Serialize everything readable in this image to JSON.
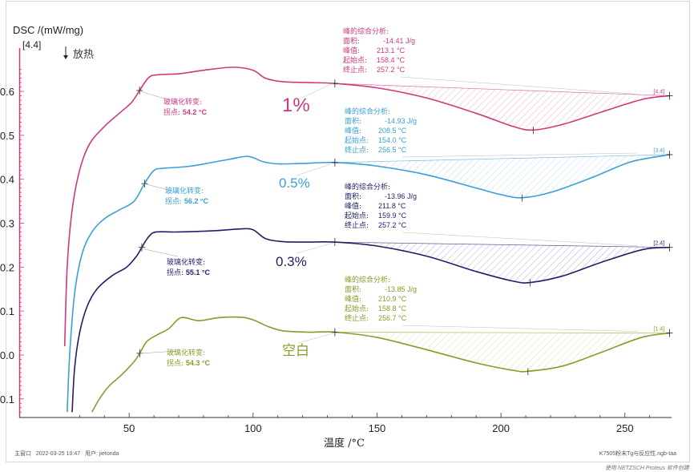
{
  "chart_data": {
    "type": "line",
    "title": "",
    "ylabel": "DSC /(mW/mg)",
    "ylabel_marker": "[4.4]",
    "exo_label": "放热",
    "xlabel": "温度 /°C",
    "xlim": [
      23,
      268
    ],
    "ylim": [
      -0.135,
      0.65
    ],
    "xticks": [
      50,
      100,
      150,
      200,
      250
    ],
    "xtick_labels": [
      "50",
      "100",
      "150",
      "200",
      "250"
    ],
    "yticks": [
      -0.1,
      0.0,
      0.1,
      0.2,
      0.3,
      0.4,
      0.5,
      0.6
    ],
    "ytick_labels": [
      "-0.1",
      "0.0",
      "0.1",
      "0.2",
      "0.3",
      "0.4",
      "0.5",
      "0.6"
    ],
    "grid": false,
    "series": [
      {
        "name": "1%",
        "file_tag": "[4.4]",
        "color": "#d0387e",
        "points": [
          [
            24,
            0.02
          ],
          [
            25,
            0.2
          ],
          [
            27,
            0.33
          ],
          [
            30,
            0.42
          ],
          [
            34,
            0.48
          ],
          [
            40,
            0.52
          ],
          [
            46,
            0.55
          ],
          [
            51,
            0.575
          ],
          [
            54.2,
            0.602
          ],
          [
            58,
            0.632
          ],
          [
            62,
            0.638
          ],
          [
            70,
            0.64
          ],
          [
            80,
            0.648
          ],
          [
            92,
            0.655
          ],
          [
            100,
            0.648
          ],
          [
            105,
            0.63
          ],
          [
            112,
            0.622
          ],
          [
            122,
            0.62
          ],
          [
            133,
            0.618
          ],
          [
            150,
            0.608
          ],
          [
            170,
            0.585
          ],
          [
            190,
            0.55
          ],
          [
            205,
            0.52
          ],
          [
            213.1,
            0.512
          ],
          [
            225,
            0.525
          ],
          [
            240,
            0.552
          ],
          [
            257.2,
            0.582
          ],
          [
            268,
            0.59
          ]
        ],
        "baseline": [
          [
            133,
            0.618
          ],
          [
            268,
            0.59
          ]
        ],
        "tg_label": "玻璃化转变:",
        "tg_inflection_label": "拐点:",
        "tg_inflection": "54.2 °C",
        "peak_title": "峰的综合分析:",
        "area_label": "面积:",
        "area": "-14.41 J/g",
        "peak_label": "峰值:",
        "peak": "213.1 °C",
        "onset_label": "起始点:",
        "onset": "158.4 °C",
        "end_label": "终止点:",
        "end": "257.2 °C"
      },
      {
        "name": "0.5%",
        "file_tag": "[3.4]",
        "color": "#3a9fd6",
        "points": [
          [
            25,
            -0.13
          ],
          [
            26,
            0.0
          ],
          [
            28,
            0.14
          ],
          [
            31,
            0.23
          ],
          [
            35,
            0.28
          ],
          [
            40,
            0.31
          ],
          [
            46,
            0.33
          ],
          [
            52,
            0.35
          ],
          [
            56.2,
            0.39
          ],
          [
            60,
            0.42
          ],
          [
            64,
            0.425
          ],
          [
            75,
            0.43
          ],
          [
            90,
            0.445
          ],
          [
            98,
            0.452
          ],
          [
            104,
            0.44
          ],
          [
            110,
            0.435
          ],
          [
            120,
            0.436
          ],
          [
            133,
            0.438
          ],
          [
            150,
            0.43
          ],
          [
            170,
            0.41
          ],
          [
            190,
            0.38
          ],
          [
            200,
            0.365
          ],
          [
            208.5,
            0.358
          ],
          [
            220,
            0.37
          ],
          [
            235,
            0.4
          ],
          [
            250,
            0.435
          ],
          [
            256.5,
            0.445
          ],
          [
            268,
            0.456
          ]
        ],
        "baseline": [
          [
            133,
            0.438
          ],
          [
            268,
            0.456
          ]
        ],
        "tg_label": "玻璃化转变:",
        "tg_inflection_label": "拐点:",
        "tg_inflection": "56.2 °C",
        "peak_title": "峰的综合分析:",
        "area_label": "面积:",
        "area": "-14.93 J/g",
        "peak_label": "峰值:",
        "peak": "208.5 °C",
        "onset_label": "起始点:",
        "onset": "154.0 °C",
        "end_label": "终止点:",
        "end": "256.5 °C"
      },
      {
        "name": "0.3%",
        "file_tag": "[2.4]",
        "color": "#1f1f66",
        "points": [
          [
            27,
            -0.13
          ],
          [
            28,
            -0.03
          ],
          [
            30,
            0.05
          ],
          [
            33,
            0.11
          ],
          [
            37,
            0.15
          ],
          [
            43,
            0.18
          ],
          [
            49,
            0.2
          ],
          [
            53,
            0.225
          ],
          [
            55.1,
            0.245
          ],
          [
            58,
            0.27
          ],
          [
            61,
            0.28
          ],
          [
            70,
            0.28
          ],
          [
            85,
            0.283
          ],
          [
            95,
            0.287
          ],
          [
            100,
            0.285
          ],
          [
            105,
            0.265
          ],
          [
            112,
            0.258
          ],
          [
            122,
            0.257
          ],
          [
            133,
            0.257
          ],
          [
            150,
            0.248
          ],
          [
            170,
            0.225
          ],
          [
            190,
            0.19
          ],
          [
            205,
            0.168
          ],
          [
            211.8,
            0.165
          ],
          [
            225,
            0.18
          ],
          [
            240,
            0.21
          ],
          [
            257.2,
            0.24
          ],
          [
            268,
            0.245
          ]
        ],
        "baseline": [
          [
            133,
            0.257
          ],
          [
            268,
            0.245
          ]
        ],
        "tg_label": "玻璃化转变:",
        "tg_inflection_label": "拐点:",
        "tg_inflection": "55.1 °C",
        "peak_title": "峰的综合分析:",
        "area_label": "面积:",
        "area": "-13.96 J/g",
        "peak_label": "峰值:",
        "peak": "211.8 °C",
        "onset_label": "起始点:",
        "onset": "159.9 °C",
        "end_label": "终止点:",
        "end": "257.2 °C"
      },
      {
        "name": "空白",
        "file_tag": "[1.4]",
        "color": "#8a9a2a",
        "points": [
          [
            35,
            -0.13
          ],
          [
            38,
            -0.1
          ],
          [
            42,
            -0.07
          ],
          [
            47,
            -0.045
          ],
          [
            52,
            -0.015
          ],
          [
            54.3,
            0.004
          ],
          [
            57,
            0.03
          ],
          [
            61,
            0.045
          ],
          [
            66,
            0.06
          ],
          [
            71,
            0.085
          ],
          [
            78,
            0.078
          ],
          [
            86,
            0.085
          ],
          [
            95,
            0.086
          ],
          [
            100,
            0.08
          ],
          [
            106,
            0.065
          ],
          [
            112,
            0.055
          ],
          [
            122,
            0.052
          ],
          [
            133,
            0.052
          ],
          [
            150,
            0.04
          ],
          [
            170,
            0.012
          ],
          [
            190,
            -0.018
          ],
          [
            205,
            -0.035
          ],
          [
            210.9,
            -0.037
          ],
          [
            225,
            -0.025
          ],
          [
            240,
            0.005
          ],
          [
            256.7,
            0.04
          ],
          [
            268,
            0.05
          ]
        ],
        "baseline": [
          [
            133,
            0.052
          ],
          [
            268,
            0.05
          ]
        ],
        "tg_label": "玻璃化转变:",
        "tg_inflection_label": "拐点:",
        "tg_inflection": "54.3 °C",
        "peak_title": "峰的综合分析:",
        "area_label": "面积:",
        "area": "-13.85 J/g",
        "peak_label": "峰值:",
        "peak": "210.9 °C",
        "onset_label": "起始点:",
        "onset": "158.8 °C",
        "end_label": "终止点:",
        "end": "256.7 °C"
      }
    ]
  },
  "footer": {
    "window": "主窗口",
    "datetime": "2022-03-25 10:47",
    "user_label": "用户:",
    "user": "jietonda",
    "filename": "K7505粉末Tg与反应性.ngb-taa",
    "credit": "使用 NETZSCH Proteus 软件创建"
  }
}
